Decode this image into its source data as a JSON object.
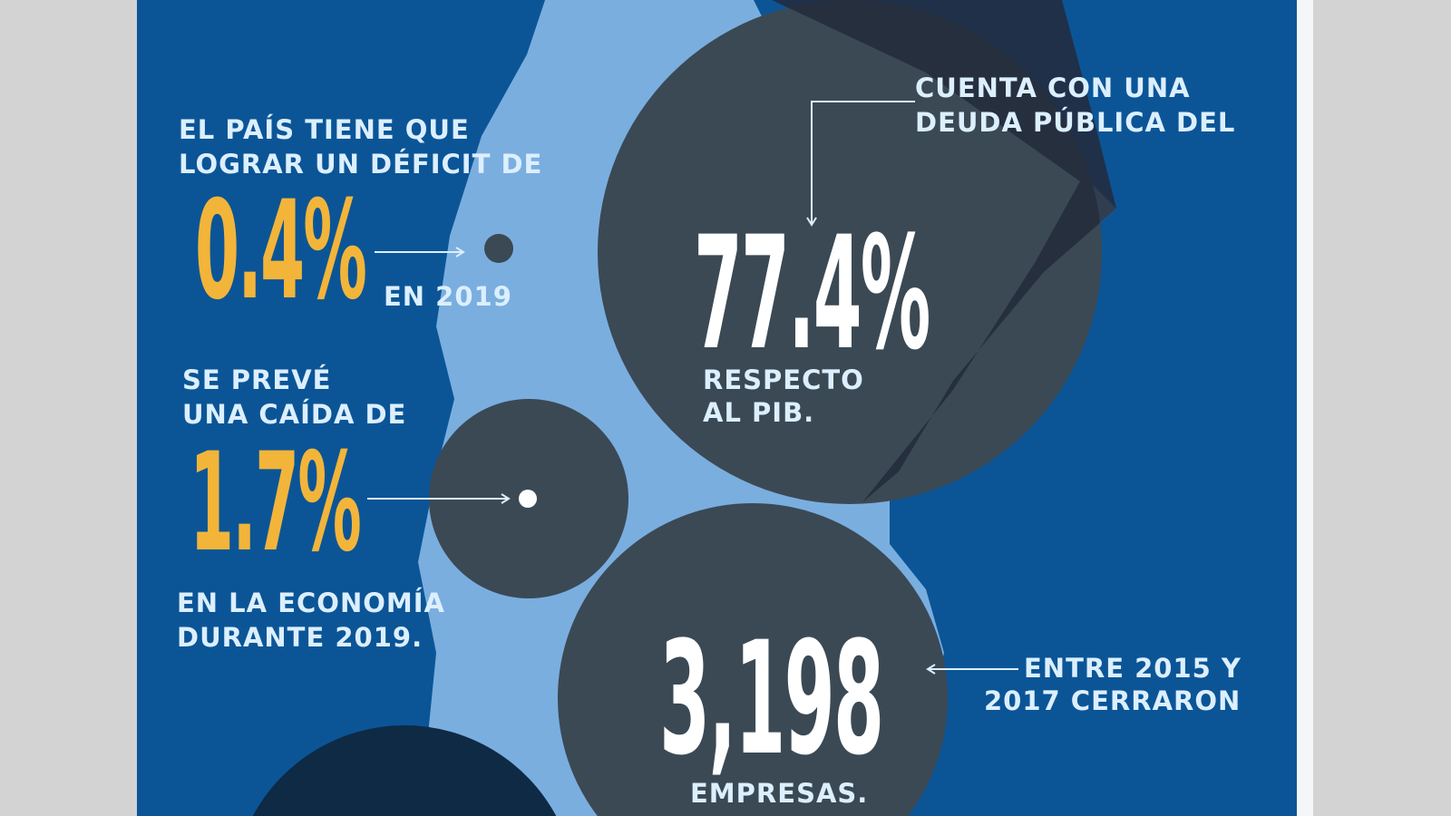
{
  "colors": {
    "background": "#0b5597",
    "map": "#7aaedf",
    "circle": "#3a4a55",
    "accent": "#f2b53a",
    "text": "#dcefff"
  },
  "stats": [
    {
      "intro": [
        "EL PAÍS TIENE QUE",
        "LOGRAR UN DÉFICIT DE"
      ],
      "value": "0.4%",
      "outro": [
        "EN 2019"
      ]
    },
    {
      "intro": [
        "SE PREVÉ",
        "UNA CAÍDA DE"
      ],
      "value": "1.7%",
      "outro": [
        "EN LA ECONOMÍA",
        "DURANTE 2019."
      ]
    },
    {
      "intro": [
        "CUENTA CON UNA",
        "DEUDA PÚBLICA DEL"
      ],
      "value": "77.4%",
      "outro": [
        "RESPECTO",
        "AL PIB."
      ]
    },
    {
      "intro": [
        "ENTRE 2015 Y",
        "2017 CERRARON"
      ],
      "value": "3,198",
      "outro": [
        "EMPRESAS."
      ]
    }
  ]
}
